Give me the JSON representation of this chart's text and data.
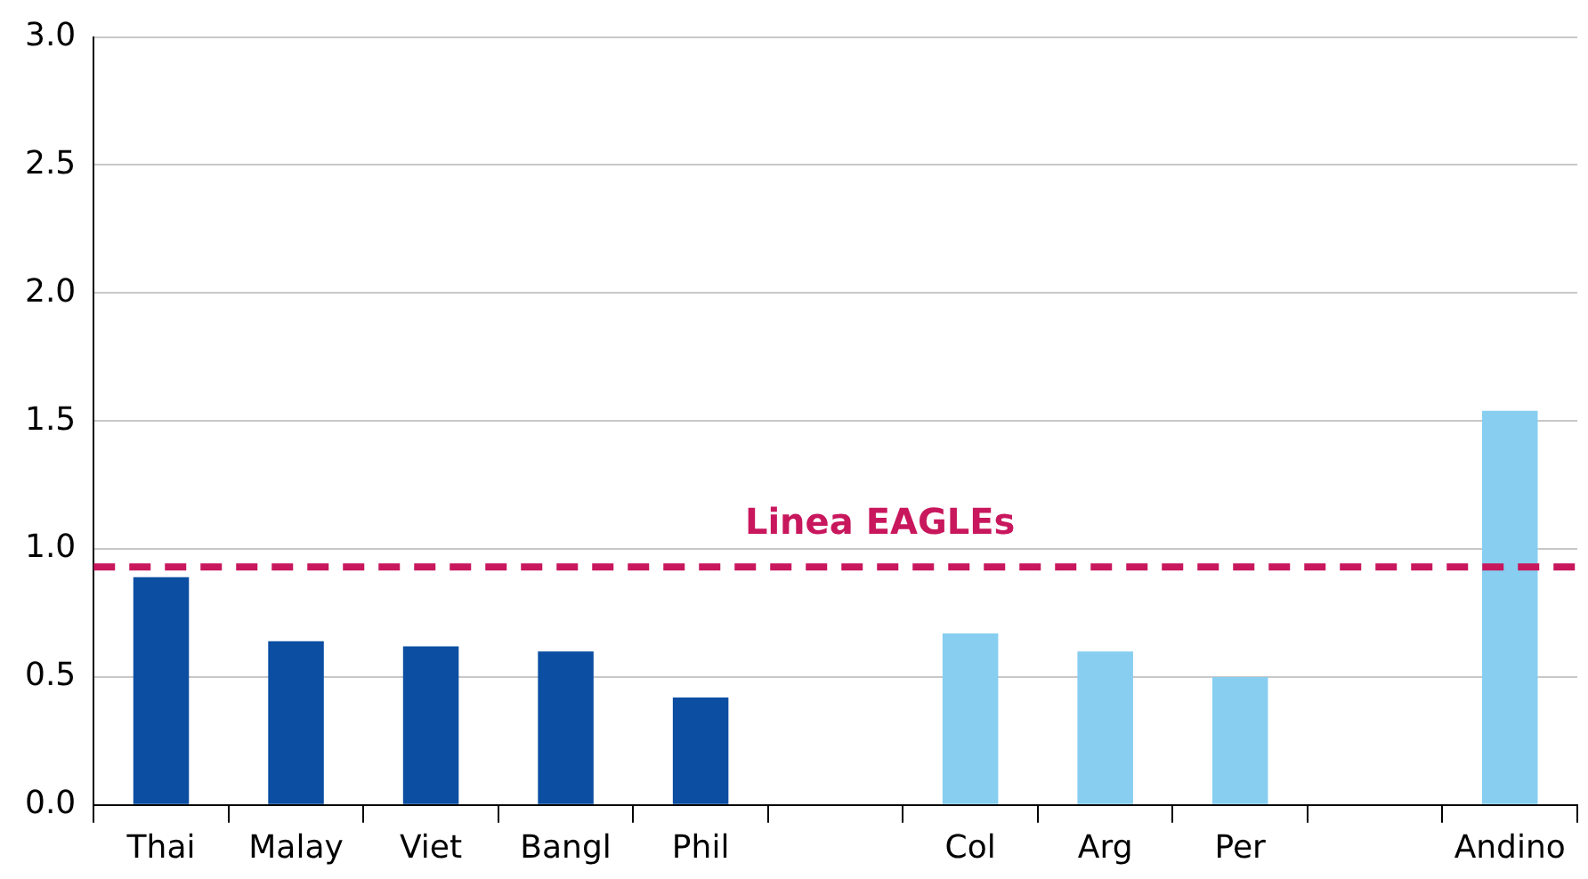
{
  "chart_data": {
    "type": "bar",
    "categories": [
      "Thai",
      "Malay",
      "Viet",
      "Bangl",
      "Phil",
      null,
      "Col",
      "Arg",
      "Per",
      null,
      "Andino"
    ],
    "values": [
      0.89,
      0.64,
      0.62,
      0.6,
      0.42,
      null,
      0.67,
      0.6,
      0.5,
      null,
      1.54
    ],
    "colors": [
      "#0b4ea2",
      "#0b4ea2",
      "#0b4ea2",
      "#0b4ea2",
      "#0b4ea2",
      "#0b4ea2",
      "#87cef0",
      "#87cef0",
      "#87cef0",
      "#87cef0",
      "#87cef0"
    ],
    "ylim": [
      0,
      3
    ],
    "yticks": [
      {
        "value": 0,
        "label": "0.0"
      },
      {
        "value": 0.5,
        "label": "0.5"
      },
      {
        "value": 1,
        "label": "1.0"
      },
      {
        "value": 1.5,
        "label": "1.5"
      },
      {
        "value": 2,
        "label": "2.0"
      },
      {
        "value": 2.5,
        "label": "2.5"
      },
      {
        "value": 3,
        "label": "3.0"
      }
    ],
    "grid": "y",
    "legend": false,
    "ref_lines": [
      {
        "axis": "y",
        "value": 0.93,
        "label": "Linea EAGLEs",
        "color": "#c8175d",
        "line_style": "dashed"
      }
    ]
  }
}
